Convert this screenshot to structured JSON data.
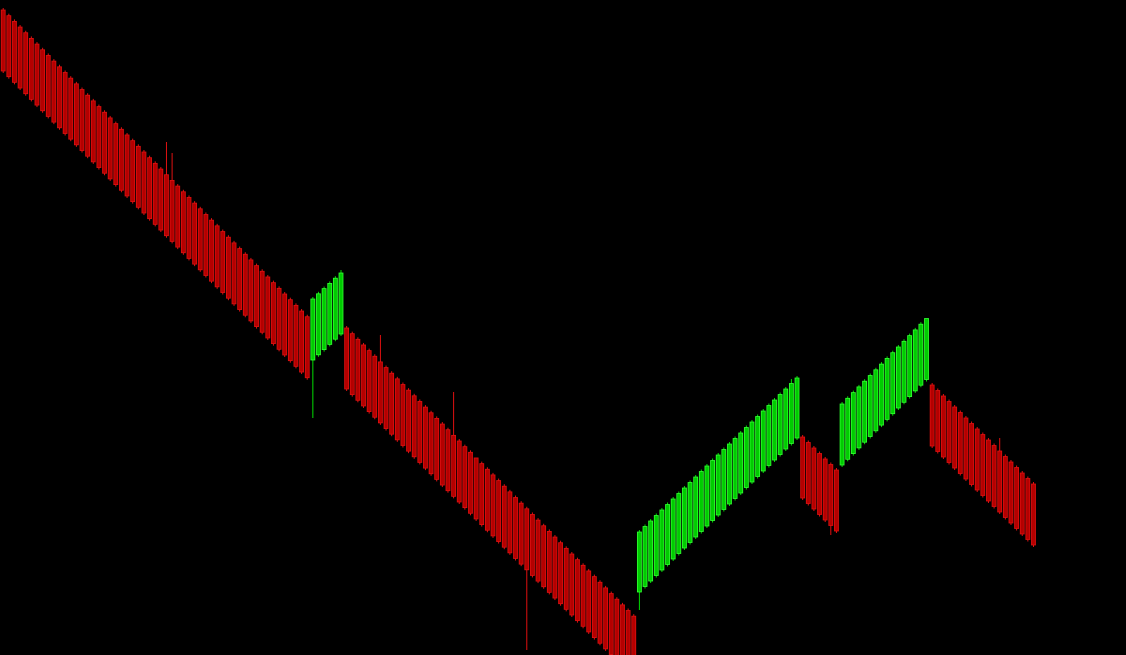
{
  "chart_data": {
    "type": "candlestick",
    "title": "",
    "xlabel": "",
    "ylabel": "",
    "grid": false,
    "legend": "none",
    "ylim": [
      0,
      655
    ],
    "colors": {
      "background": "#000000",
      "up_body": "#00cc00",
      "up_border": "#33ff33",
      "down_body": "#b40000",
      "down_border": "#e01010",
      "wick_up": "#00dd00",
      "wick_down": "#e01010"
    },
    "segments": [
      {
        "direction": "down",
        "count": 55,
        "open_start": 645,
        "open_step": -5.68,
        "body_size": 61
      },
      {
        "direction": "up",
        "count": 6,
        "open_start": 295,
        "open_step": 5.2,
        "body_size": 61
      },
      {
        "direction": "down",
        "count": 52,
        "open_start": 327,
        "open_step": -5.65,
        "body_size": 61
      },
      {
        "direction": "up",
        "count": 29,
        "open_start": 63,
        "open_step": 5.5,
        "body_size": 60
      },
      {
        "direction": "down",
        "count": 7,
        "open_start": 218,
        "open_step": -5.5,
        "body_size": 61
      },
      {
        "direction": "up",
        "count": 16,
        "open_start": 190,
        "open_step": 5.7,
        "body_size": 61
      },
      {
        "direction": "down",
        "count": 19,
        "open_start": 270,
        "open_step": -5.5,
        "body_size": 61
      }
    ],
    "spikes": [
      {
        "index": 29,
        "high": 513
      },
      {
        "index": 30,
        "high": 502
      },
      {
        "index": 55,
        "low": 237
      },
      {
        "index": 60,
        "high": 385
      },
      {
        "index": 67,
        "high": 320
      },
      {
        "index": 80,
        "high": 263
      },
      {
        "index": 84,
        "high": 185
      },
      {
        "index": 93,
        "low": 5
      },
      {
        "index": 113,
        "low": 45
      },
      {
        "index": 140,
        "high": 276
      },
      {
        "index": 147,
        "low": 120
      },
      {
        "index": 164,
        "high": 326
      },
      {
        "index": 177,
        "high": 217
      }
    ]
  }
}
